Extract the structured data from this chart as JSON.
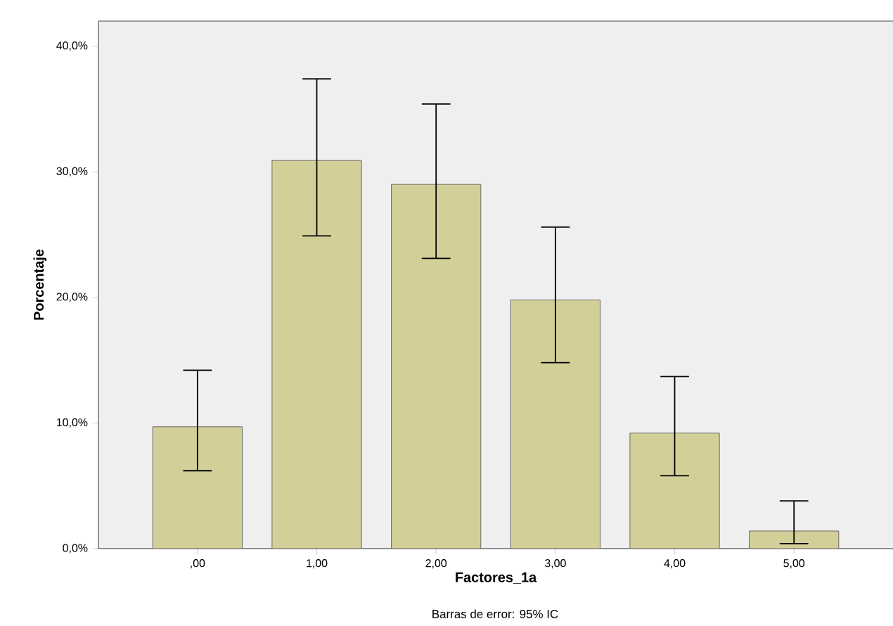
{
  "chart_data": {
    "type": "bar",
    "categories": [
      ",00",
      "1,00",
      "2,00",
      "3,00",
      "4,00",
      "5,00"
    ],
    "values": [
      9.7,
      30.9,
      29.0,
      19.8,
      9.2,
      1.4
    ],
    "errors": [
      [
        6.2,
        14.2
      ],
      [
        24.9,
        37.4
      ],
      [
        23.1,
        35.4
      ],
      [
        14.8,
        25.6
      ],
      [
        5.8,
        13.7
      ],
      [
        0.4,
        3.8
      ]
    ],
    "color": "#d3cf98",
    "xlabel": "Factores_1a",
    "ylabel": "Porcentaje",
    "ylim": [
      0,
      42
    ],
    "yticks": [
      {
        "value": 0,
        "label": "0,0%"
      },
      {
        "value": 10,
        "label": "10,0%"
      },
      {
        "value": 20,
        "label": "20,0%"
      },
      {
        "value": 30,
        "label": "30,0%"
      },
      {
        "value": 40,
        "label": "40,0%"
      }
    ],
    "annotations": [
      "Barras de error: 95% IC"
    ]
  }
}
